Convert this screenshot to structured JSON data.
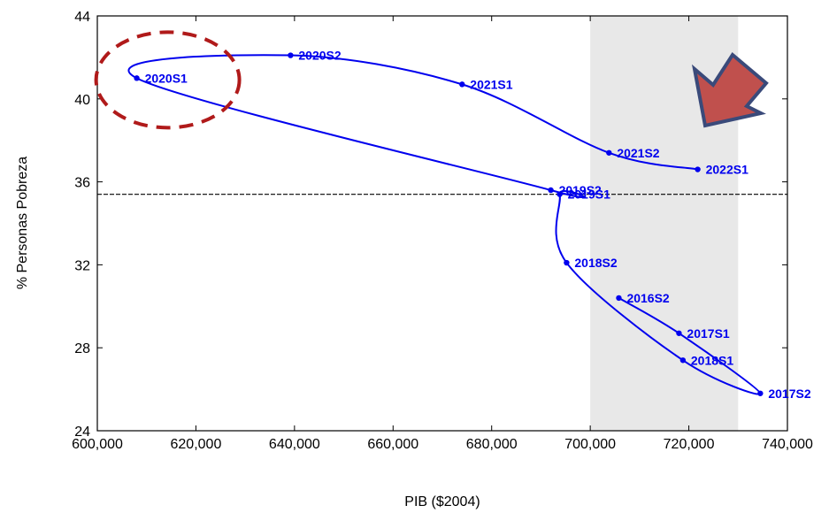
{
  "chart_data": {
    "type": "line",
    "xlabel": "PIB ($2004)",
    "ylabel": "% Personas Pobreza",
    "xlim": [
      600000,
      740000
    ],
    "ylim": [
      24,
      44
    ],
    "x_ticks": [
      600000,
      620000,
      640000,
      660000,
      680000,
      700000,
      720000,
      740000
    ],
    "x_tick_labels": [
      "600,000",
      "620,000",
      "640,000",
      "660,000",
      "680,000",
      "700,000",
      "720,000",
      "740,000"
    ],
    "y_ticks": [
      24,
      28,
      32,
      36,
      40,
      44
    ],
    "y_tick_labels": [
      "24",
      "28",
      "32",
      "36",
      "40",
      "44"
    ],
    "series": [
      {
        "color": "#0000ee",
        "points": [
          {
            "label": "2016S2",
            "x": 705800,
            "y": 30.4
          },
          {
            "label": "2017S1",
            "x": 718000,
            "y": 28.7
          },
          {
            "label": "2017S2",
            "x": 734500,
            "y": 25.8
          },
          {
            "label": "2018S1",
            "x": 718800,
            "y": 27.4
          },
          {
            "label": "2018S2",
            "x": 695200,
            "y": 32.1
          },
          {
            "label": "2019S1",
            "x": 693800,
            "y": 35.4
          },
          {
            "label": "2019S2",
            "x": 692000,
            "y": 35.6
          },
          {
            "label": "2020S1",
            "x": 608000,
            "y": 41.0
          },
          {
            "label": "2020S2",
            "x": 639200,
            "y": 42.1
          },
          {
            "label": "2021S1",
            "x": 674000,
            "y": 40.7
          },
          {
            "label": "2021S2",
            "x": 703800,
            "y": 37.4
          },
          {
            "label": "2022S1",
            "x": 721800,
            "y": 36.6
          }
        ]
      }
    ],
    "reference_line": {
      "y": 35.4,
      "style": "dashed",
      "color": "#000000"
    },
    "shaded_region": {
      "x_from": 700000,
      "x_to": 730000,
      "color": "#e8e8e8"
    },
    "annotations": [
      {
        "type": "dashed-ellipse",
        "color": "#b01a1a",
        "around": "2020S1"
      },
      {
        "type": "arrow",
        "color": "#c0504d",
        "outline": "#3a4a7a",
        "direction": "down-left"
      }
    ]
  }
}
